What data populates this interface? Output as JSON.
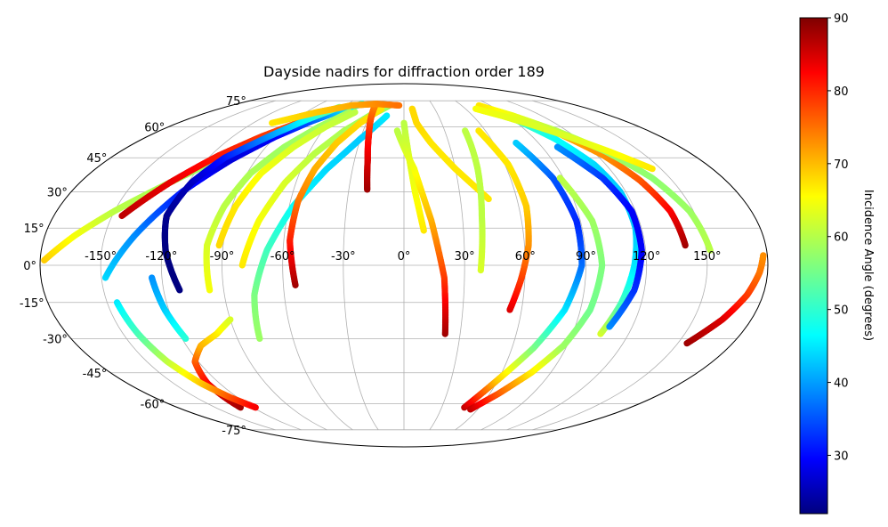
{
  "chart_data": {
    "type": "scatter",
    "projection": "mollweide",
    "title": "Dayside nadirs for diffraction order 189",
    "grid": true,
    "x_ticks": [
      -150,
      -120,
      -90,
      -60,
      -30,
      0,
      30,
      60,
      90,
      120,
      150
    ],
    "x_tick_labels": [
      "-150°",
      "-120°",
      "-90°",
      "-60°",
      "-30°",
      "0°",
      "30°",
      "60°",
      "90°",
      "120°",
      "150°"
    ],
    "y_ticks": [
      -75,
      -60,
      -45,
      -30,
      -15,
      0,
      15,
      30,
      45,
      60,
      75
    ],
    "y_tick_labels": [
      "-75°",
      "-60°",
      "-45°",
      "-30°",
      "-15°",
      "0°",
      "15°",
      "30°",
      "45°",
      "60°",
      "75°"
    ],
    "colorbar": {
      "label": "Incidence Angle (degrees)",
      "colormap": "jet",
      "range": [
        22,
        90
      ],
      "ticks": [
        30,
        40,
        50,
        60,
        70,
        80,
        90
      ],
      "tick_labels": [
        "30",
        "40",
        "50",
        "60",
        "70",
        "80",
        "90"
      ]
    },
    "tracks": [
      {
        "lon": [
          -178,
          -165,
          -150,
          -135,
          -120,
          -105,
          -90,
          -75,
          -60
        ],
        "lat": [
          2,
          12,
          22,
          31,
          40,
          48,
          56,
          63,
          70
        ],
        "inc": [
          68,
          64,
          60,
          59,
          58,
          59,
          60,
          62,
          64
        ]
      },
      {
        "lon": [
          -145,
          -130,
          -115,
          -100,
          -85,
          -70,
          -55
        ],
        "lat": [
          20,
          34,
          46,
          55,
          62,
          68,
          72
        ],
        "inc": [
          86,
          83,
          80,
          78,
          76,
          74,
          72
        ]
      },
      {
        "lon": [
          -148,
          -135,
          -120,
          -105,
          -90,
          -75,
          -60,
          -45
        ],
        "lat": [
          -5,
          12,
          30,
          44,
          55,
          63,
          69,
          73
        ],
        "inc": [
          45,
          40,
          32,
          28,
          30,
          36,
          44,
          50
        ]
      },
      {
        "lon": [
          -112,
          -118,
          -122,
          -118,
          -110,
          -95,
          -80,
          -65
        ],
        "lat": [
          -10,
          5,
          20,
          34,
          45,
          55,
          64,
          71
        ],
        "inc": [
          22,
          22,
          23,
          26,
          32,
          40,
          48,
          56
        ]
      },
      {
        "lon": [
          -130,
          -128,
          -122,
          -112,
          -100,
          -90
        ],
        "lat": [
          -62,
          -50,
          -40,
          -33,
          -28,
          -22
        ],
        "inc": [
          88,
          82,
          76,
          70,
          66,
          62
        ]
      },
      {
        "lon": [
          -145,
          -142,
          -138,
          -132,
          -125,
          -118
        ],
        "lat": [
          -15,
          -28,
          -40,
          -50,
          -57,
          -62
        ],
        "inc": [
          46,
          52,
          60,
          68,
          76,
          82
        ]
      },
      {
        "lon": [
          -125,
          -122,
          -118
        ],
        "lat": [
          -5,
          -18,
          -30
        ],
        "inc": [
          40,
          44,
          50
        ]
      },
      {
        "lon": [
          -97,
          -98,
          -94,
          -88,
          -78,
          -65,
          -50
        ],
        "lat": [
          -10,
          8,
          24,
          38,
          50,
          60,
          68
        ],
        "inc": [
          64,
          62,
          60,
          59,
          58,
          58,
          59
        ]
      },
      {
        "lon": [
          -92,
          -88,
          -82,
          -72,
          -60,
          -45
        ],
        "lat": [
          8,
          24,
          38,
          50,
          60,
          68
        ],
        "inc": [
          67,
          66,
          64,
          62,
          61,
          60
        ]
      },
      {
        "lon": [
          -80,
          -74,
          -66,
          -56,
          -44,
          -30,
          -15
        ],
        "lat": [
          0,
          18,
          34,
          47,
          58,
          66,
          72
        ],
        "inc": [
          66,
          64,
          62,
          60,
          59,
          58,
          58
        ]
      },
      {
        "lon": [
          -78,
          -75,
          -68,
          -58,
          -45,
          -30,
          -15
        ],
        "lat": [
          -30,
          -12,
          6,
          24,
          40,
          54,
          66
        ],
        "inc": [
          58,
          56,
          52,
          48,
          45,
          44,
          46
        ]
      },
      {
        "lon": [
          -54,
          -57,
          -56,
          -52,
          -45,
          -35,
          -22
        ],
        "lat": [
          -8,
          10,
          26,
          40,
          52,
          62,
          70
        ],
        "inc": [
          88,
          80,
          74,
          70,
          68,
          67,
          66
        ]
      },
      {
        "lon": [
          -20,
          -22,
          -25,
          -28,
          -30
        ],
        "lat": [
          31,
          44,
          56,
          65,
          72
        ],
        "inc": [
          88,
          84,
          80,
          76,
          73
        ]
      },
      {
        "lon": [
          10,
          6,
          3,
          0
        ],
        "lat": [
          14,
          30,
          46,
          62
        ],
        "inc": [
          66,
          64,
          62,
          60
        ]
      },
      {
        "lon": [
          22,
          20,
          14,
          6,
          -5
        ],
        "lat": [
          -28,
          -5,
          18,
          40,
          58
        ],
        "inc": [
          88,
          78,
          70,
          64,
          60
        ]
      },
      {
        "lon": [
          45,
          30,
          18,
          10,
          8
        ],
        "lat": [
          27,
          40,
          52,
          62,
          70
        ],
        "inc": [
          66,
          66,
          66,
          67,
          67
        ]
      },
      {
        "lon": [
          38,
          40,
          43,
          45
        ],
        "lat": [
          -2,
          20,
          40,
          58
        ],
        "inc": [
          62,
          60,
          60,
          60
        ]
      },
      {
        "lon": [
          54,
          58,
          62,
          64,
          62,
          55
        ],
        "lat": [
          -18,
          -6,
          8,
          24,
          42,
          58
        ],
        "inc": [
          84,
          78,
          72,
          68,
          66,
          66
        ]
      },
      {
        "lon": [
          48,
          60,
          72,
          82,
          88,
          88,
          84,
          75
        ],
        "lat": [
          -62,
          -48,
          -34,
          -18,
          0,
          18,
          36,
          52
        ],
        "inc": [
          86,
          68,
          56,
          46,
          38,
          33,
          36,
          44
        ]
      },
      {
        "lon": [
          54,
          66,
          78,
          88,
          95,
          98,
          96,
          88
        ],
        "lat": [
          -63,
          -55,
          -45,
          -33,
          -18,
          0,
          18,
          36
        ],
        "inc": [
          86,
          76,
          66,
          58,
          55,
          56,
          58,
          60
        ]
      },
      {
        "lon": [
          105,
          110,
          114,
          117,
          117,
          113,
          104,
          92
        ],
        "lat": [
          -28,
          -15,
          0,
          15,
          30,
          42,
          54,
          64
        ],
        "inc": [
          62,
          52,
          46,
          44,
          44,
          45,
          48,
          52
        ]
      },
      {
        "lon": [
          108,
          115,
          118,
          118,
          112,
          100
        ],
        "lat": [
          -25,
          -10,
          6,
          22,
          36,
          50
        ],
        "inc": [
          40,
          34,
          30,
          30,
          34,
          40
        ]
      },
      {
        "lon": [
          140,
          138,
          132,
          124,
          112,
          98,
          82
        ],
        "lat": [
          8,
          22,
          35,
          46,
          56,
          64,
          70
        ],
        "inc": [
          88,
          82,
          76,
          72,
          70,
          68,
          67
        ]
      },
      {
        "lon": [
          152,
          148,
          140,
          128,
          112,
          95,
          78
        ],
        "lat": [
          6,
          22,
          36,
          48,
          58,
          66,
          72
        ],
        "inc": [
          60,
          58,
          57,
          58,
          60,
          63,
          66
        ]
      },
      {
        "lon": [
          155,
          165,
          172,
          176,
          178
        ],
        "lat": [
          -32,
          -22,
          -12,
          -3,
          4
        ],
        "inc": [
          88,
          84,
          78,
          74,
          72
        ]
      },
      {
        "lon": [
          145,
          130,
          115,
          100,
          85,
          70
        ],
        "lat": [
          40,
          48,
          55,
          61,
          66,
          70
        ],
        "inc": [
          66,
          64,
          62,
          62,
          63,
          64
        ]
      },
      {
        "lon": [
          -105,
          -80,
          -55,
          -30,
          -5
        ],
        "lat": [
          62,
          68,
          72,
          73,
          72
        ],
        "inc": [
          66,
          68,
          70,
          72,
          74
        ]
      }
    ]
  }
}
